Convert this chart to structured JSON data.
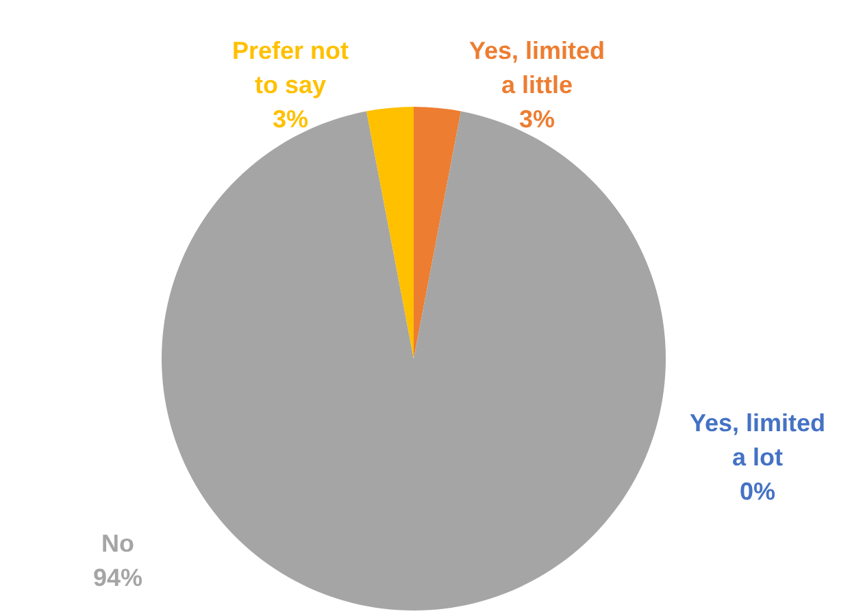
{
  "chart_data": {
    "type": "pie",
    "categories": [
      "Yes, limited a lot",
      "Yes, limited a little",
      "No",
      "Prefer not to say"
    ],
    "values": [
      0,
      3,
      94,
      3
    ],
    "value_labels": [
      "0%",
      "3%",
      "94%",
      "3%"
    ],
    "colors": [
      "#4472c4",
      "#ed7d31",
      "#a5a5a5",
      "#ffc000"
    ]
  }
}
